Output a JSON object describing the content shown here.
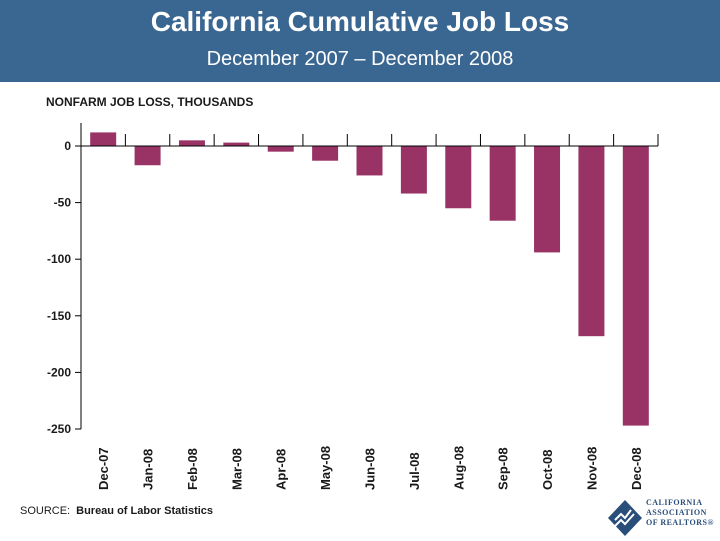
{
  "header": {
    "title": "California Cumulative Job Loss",
    "subtitle": "December 2007 – December 2008"
  },
  "colors": {
    "header_bg": "#3a6792",
    "bar": "#993366",
    "axis": "#000000"
  },
  "chart_data": {
    "type": "bar",
    "ylabel": "NONFARM JOB LOSS, THOUSANDS",
    "xlabel": "",
    "categories": [
      "Dec-07",
      "Jan-08",
      "Feb-08",
      "Mar-08",
      "Apr-08",
      "May-08",
      "Jun-08",
      "Jul-08",
      "Aug-08",
      "Sep-08",
      "Oct-08",
      "Nov-08",
      "Dec-08"
    ],
    "values": [
      12,
      -17,
      5,
      3,
      -5,
      -13,
      -26,
      -42,
      -55,
      -66,
      -94,
      -168,
      -247
    ],
    "ylim": [
      -250,
      20
    ],
    "yticks": [
      0,
      -50,
      -100,
      -150,
      -200,
      -250
    ],
    "grid": false,
    "legend": "none"
  },
  "footer": {
    "source_label": "SOURCE:",
    "source_value": "Bureau of Labor Statistics",
    "logo_text": [
      "CALIFORNIA",
      "ASSOCIATION",
      "OF REALTORS®"
    ]
  }
}
